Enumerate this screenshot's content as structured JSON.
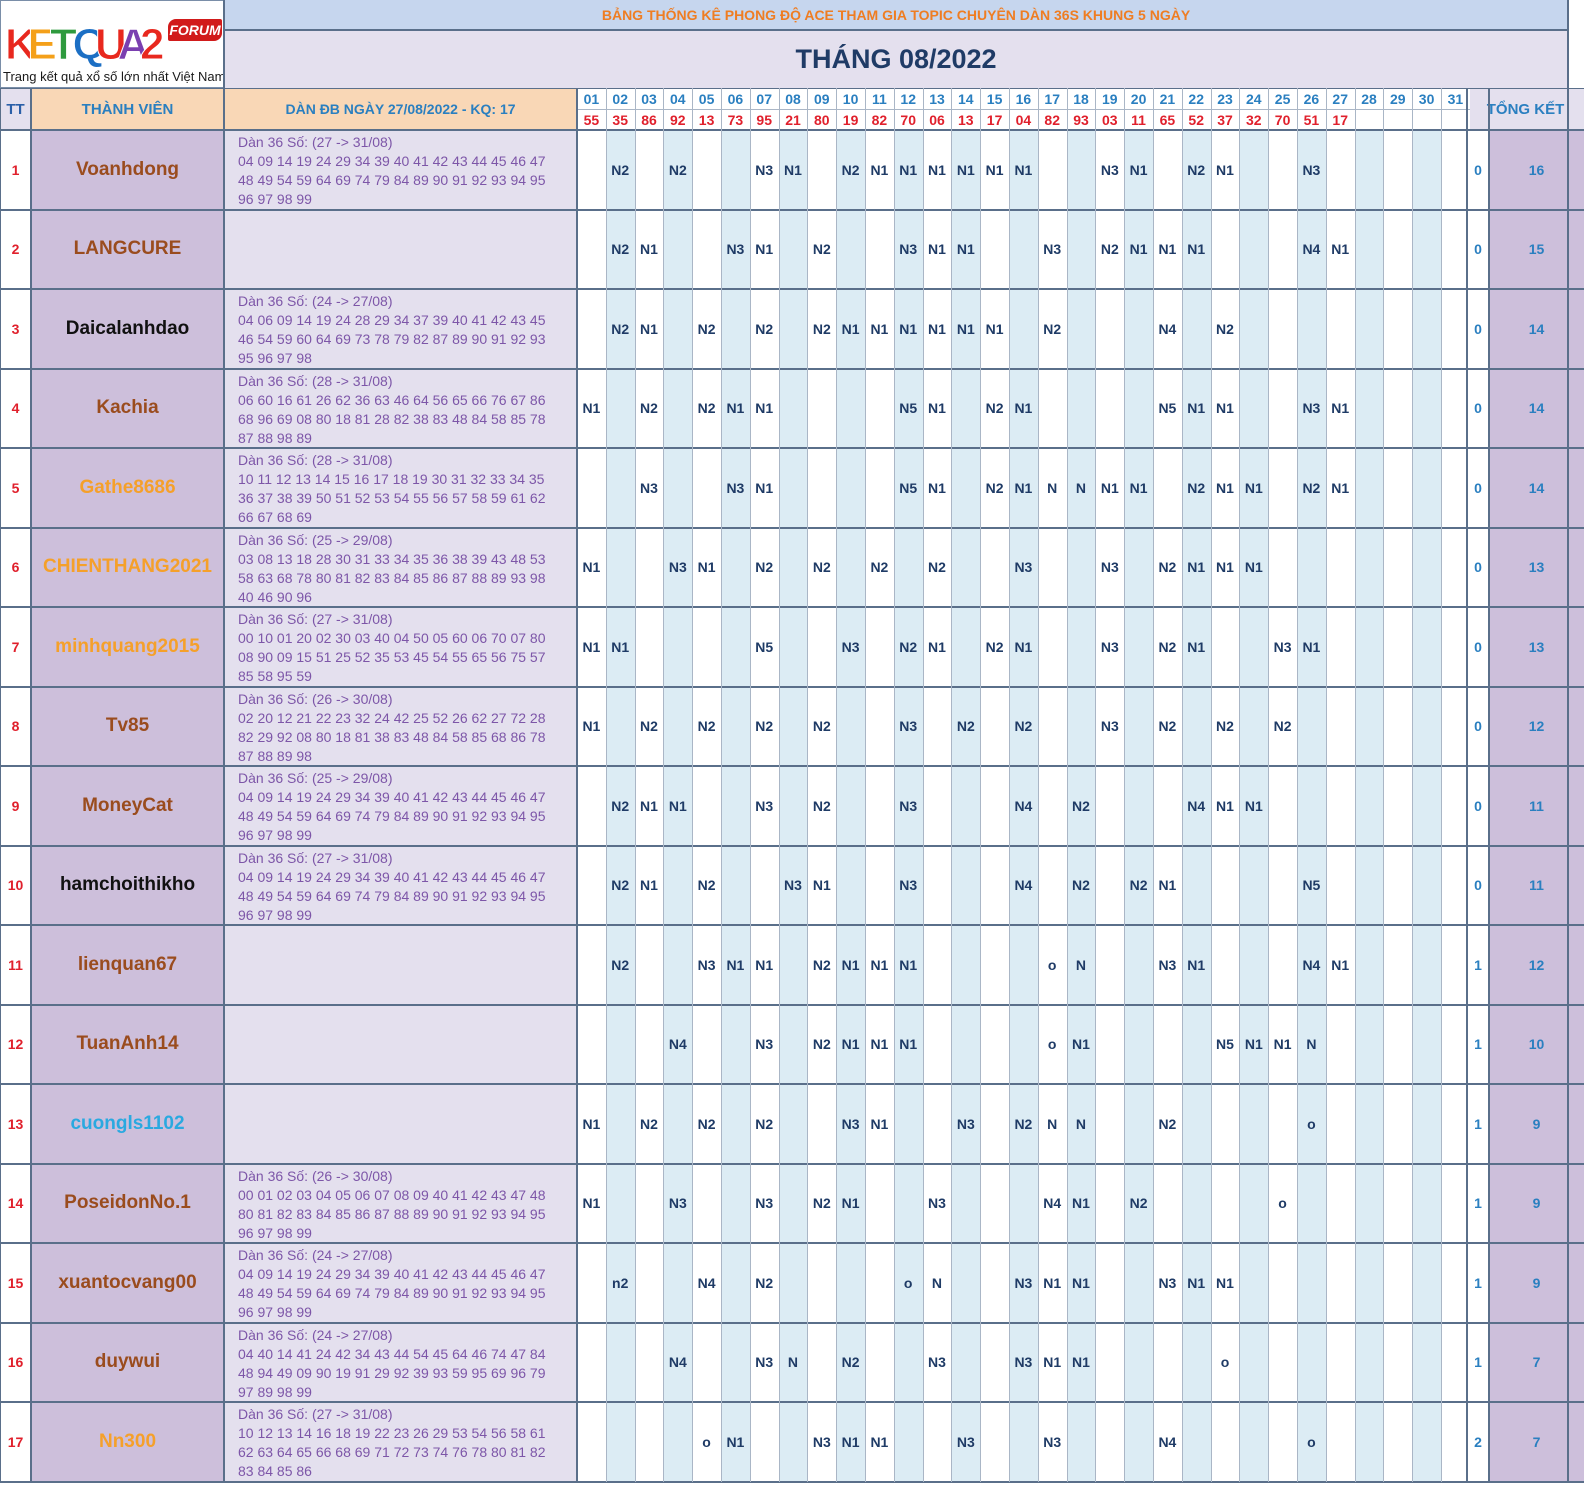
{
  "header": {
    "title": "BẢNG THỐNG KÊ PHONG ĐỘ ACE THAM GIA TOPIC CHUYÊN DÀN 36S KHUNG 5 NGÀY",
    "month": "THÁNG 08/2022",
    "col_tt": "TT",
    "col_member": "THÀNH VIÊN",
    "col_dan": "DÀN ĐB NGÀY 27/08/2022 - KQ: 17",
    "col_total": "TỔNG KẾT"
  },
  "logo": {
    "letters": [
      {
        "ch": "K",
        "color": "#e8281e"
      },
      {
        "ch": "E",
        "color": "#f4a019"
      },
      {
        "ch": "T",
        "color": "#2e9a3e"
      },
      {
        "ch": "Q",
        "color": "#1c6fc4"
      },
      {
        "ch": "U",
        "color": "#e8281e"
      },
      {
        "ch": "A",
        "color": "#7a3fb0"
      },
      {
        "ch": "2",
        "color": "#e8281e"
      }
    ],
    "badge": "FORUM",
    "tagline": "Trang kết quả xổ số lớn nhất Việt Nam"
  },
  "days": [
    "01",
    "02",
    "03",
    "04",
    "05",
    "06",
    "07",
    "08",
    "09",
    "10",
    "11",
    "12",
    "13",
    "14",
    "15",
    "16",
    "17",
    "18",
    "19",
    "20",
    "21",
    "22",
    "23",
    "24",
    "25",
    "26",
    "27",
    "28",
    "29",
    "30",
    "31"
  ],
  "results": [
    "55",
    "35",
    "86",
    "92",
    "13",
    "73",
    "95",
    "21",
    "80",
    "19",
    "82",
    "70",
    "06",
    "13",
    "17",
    "04",
    "82",
    "93",
    "03",
    "11",
    "65",
    "52",
    "37",
    "32",
    "70",
    "51",
    "17",
    "",
    "",
    "",
    ""
  ],
  "colors": {
    "name_brown": "#9a4c1e",
    "name_black": "#111111",
    "name_orange": "#f5a02a",
    "name_blue": "#2aa9e0"
  },
  "members": [
    {
      "tt": "1",
      "name": "Voanhdong",
      "color": "#9a4c1e",
      "dan": "Dàn 36 Số: (27 -> 31/08)\n04 09 14 19 24 29 34 39 40 41 42 43 44 45 46 47\n48 49 54 59 64 69 74 79 84 89 90 91 92 93 94 95\n96 97 98 99",
      "cells": {
        "02": "N2",
        "04": "N2",
        "07": "N3",
        "08": "N1",
        "10": "N2",
        "11": "N1",
        "12": "N1",
        "13": "N1",
        "14": "N1",
        "15": "N1",
        "16": "N1",
        "19": "N3",
        "20": "N1",
        "22": "N2",
        "23": "N1",
        "26": "N3"
      },
      "miss": "0",
      "total": "16"
    },
    {
      "tt": "2",
      "name": "LANGCURE",
      "color": "#9a4c1e",
      "dan": "",
      "cells": {
        "02": "N2",
        "03": "N1",
        "06": "N3",
        "07": "N1",
        "09": "N2",
        "12": "N3",
        "13": "N1",
        "14": "N1",
        "17": "N3",
        "19": "N2",
        "20": "N1",
        "21": "N1",
        "22": "N1",
        "26": "N4",
        "27": "N1"
      },
      "miss": "0",
      "total": "15"
    },
    {
      "tt": "3",
      "name": "Daicalanhdao",
      "color": "#111111",
      "dan": "Dàn 36 Số: (24 -> 27/08)\n04 06 09 14 19 24 28 29 34 37 39 40 41 42 43 45\n46 54 59 60 64 69 73 78 79 82 87 89 90 91 92 93\n95 96 97 98",
      "cells": {
        "02": "N2",
        "03": "N1",
        "05": "N2",
        "07": "N2",
        "09": "N2",
        "10": "N1",
        "11": "N1",
        "12": "N1",
        "13": "N1",
        "14": "N1",
        "15": "N1",
        "17": "N2",
        "21": "N4",
        "23": "N2"
      },
      "miss": "0",
      "total": "14"
    },
    {
      "tt": "4",
      "name": "Kachia",
      "color": "#9a4c1e",
      "dan": "Dàn 36 Số: (28 -> 31/08)\n06 60 16 61 26 62 36 63 46 64 56 65 66 76 67 86\n68 96 69 08 80 18 81 28 82 38 83 48 84 58 85 78\n87 88 98 89",
      "cells": {
        "01": "N1",
        "03": "N2",
        "05": "N2",
        "06": "N1",
        "07": "N1",
        "12": "N5",
        "13": "N1",
        "15": "N2",
        "16": "N1",
        "21": "N5",
        "22": "N1",
        "23": "N1",
        "26": "N3",
        "27": "N1"
      },
      "miss": "0",
      "total": "14"
    },
    {
      "tt": "5",
      "name": "Gathe8686",
      "color": "#f5a02a",
      "dan": "Dàn 36 Số: (28 -> 31/08)\n10 11 12 13 14 15 16 17 18 19 30 31 32 33 34 35\n36 37 38 39 50 51 52 53 54 55 56 57 58 59 61 62\n66 67 68 69",
      "cells": {
        "03": "N3",
        "06": "N3",
        "07": "N1",
        "12": "N5",
        "13": "N1",
        "15": "N2",
        "16": "N1",
        "17": "N",
        "18": "N",
        "19": "N1",
        "20": "N1",
        "22": "N2",
        "23": "N1",
        "24": "N1",
        "26": "N2",
        "27": "N1"
      },
      "miss": "0",
      "total": "14"
    },
    {
      "tt": "6",
      "name": "CHIENTHANG2021",
      "color": "#f5a02a",
      "dan": "Dàn 36 Số: (25 -> 29/08)\n03 08 13 18 28 30 31 33 34 35 36 38 39 43 48 53\n58 63 68 78 80 81 82 83 84 85 86 87 88 89 93 98\n40 46 90 96",
      "cells": {
        "01": "N1",
        "04": "N3",
        "05": "N1",
        "07": "N2",
        "09": "N2",
        "11": "N2",
        "13": "N2",
        "16": "N3",
        "19": "N3",
        "21": "N2",
        "22": "N1",
        "23": "N1",
        "24": "N1"
      },
      "miss": "0",
      "total": "13"
    },
    {
      "tt": "7",
      "name": "minhquang2015",
      "color": "#f5a02a",
      "dan": "Dàn 36 Số: (27 -> 31/08)\n00 10 01 20 02 30 03 40 04 50 05 60 06 70 07 80\n08 90 09 15 51 25 52 35 53 45 54 55 65 56 75 57\n85 58 95 59",
      "cells": {
        "01": "N1",
        "02": "N1",
        "07": "N5",
        "10": "N3",
        "12": "N2",
        "13": "N1",
        "15": "N2",
        "16": "N1",
        "19": "N3",
        "21": "N2",
        "22": "N1",
        "25": "N3",
        "26": "N1"
      },
      "miss": "0",
      "total": "13"
    },
    {
      "tt": "8",
      "name": "Tv85",
      "color": "#9a4c1e",
      "dan": "Dàn 36 Số: (26 -> 30/08)\n02 20 12 21 22 23 32 24 42 25 52 26 62 27 72 28\n82 29 92 08 80 18 81 38 83 48 84 58 85 68 86 78\n87 88 89 98",
      "cells": {
        "01": "N1",
        "03": "N2",
        "05": "N2",
        "07": "N2",
        "09": "N2",
        "12": "N3",
        "14": "N2",
        "16": "N2",
        "19": "N3",
        "21": "N2",
        "23": "N2",
        "25": "N2"
      },
      "miss": "0",
      "total": "12"
    },
    {
      "tt": "9",
      "name": "MoneyCat",
      "color": "#9a4c1e",
      "dan": "Dàn 36 Số: (25 -> 29/08)\n04 09 14 19 24 29 34 39 40 41 42 43 44 45 46 47\n48 49 54 59 64 69 74 79 84 89 90 91 92 93 94 95\n96 97 98 99",
      "cells": {
        "02": "N2",
        "03": "N1",
        "04": "N1",
        "07": "N3",
        "09": "N2",
        "12": "N3",
        "16": "N4",
        "18": "N2",
        "22": "N4",
        "23": "N1",
        "24": "N1"
      },
      "miss": "0",
      "total": "11"
    },
    {
      "tt": "10",
      "name": "hamchoithikho",
      "color": "#111111",
      "dan": "Dàn 36 Số: (27 -> 31/08)\n04 09 14 19 24 29 34 39 40 41 42 43 44 45 46 47\n48 49 54 59 64 69 74 79 84 89 90 91 92 93 94 95\n96 97 98 99",
      "cells": {
        "02": "N2",
        "03": "N1",
        "05": "N2",
        "08": "N3",
        "09": "N1",
        "12": "N3",
        "16": "N4",
        "18": "N2",
        "20": "N2",
        "21": "N1",
        "26": "N5"
      },
      "miss": "0",
      "total": "11"
    },
    {
      "tt": "11",
      "name": "lienquan67",
      "color": "#9a4c1e",
      "dan": "",
      "cells": {
        "02": "N2",
        "05": "N3",
        "06": "N1",
        "07": "N1",
        "09": "N2",
        "10": "N1",
        "11": "N1",
        "12": "N1",
        "17": "o",
        "18": "N",
        "21": "N3",
        "22": "N1",
        "26": "N4",
        "27": "N1"
      },
      "miss": "1",
      "total": "12"
    },
    {
      "tt": "12",
      "name": "TuanAnh14",
      "color": "#9a4c1e",
      "dan": "",
      "cells": {
        "04": "N4",
        "07": "N3",
        "09": "N2",
        "10": "N1",
        "11": "N1",
        "12": "N1",
        "17": "o",
        "18": "N1",
        "23": "N5",
        "24": "N1",
        "25": "N1",
        "26": "N"
      },
      "miss": "1",
      "total": "10"
    },
    {
      "tt": "13",
      "name": "cuongls1102",
      "color": "#2aa9e0",
      "dan": "",
      "cells": {
        "01": "N1",
        "03": "N2",
        "05": "N2",
        "07": "N2",
        "10": "N3",
        "11": "N1",
        "14": "N3",
        "16": "N2",
        "17": "N",
        "18": "N",
        "21": "N2",
        "26": "o"
      },
      "miss": "1",
      "total": "9"
    },
    {
      "tt": "14",
      "name": "PoseidonNo.1",
      "color": "#9a4c1e",
      "dan": "Dàn 36 Số: (26 -> 30/08)\n00 01 02 03 04 05 06 07 08 09 40 41 42 43 47 48\n80 81 82 83 84 85 86 87 88 89 90 91 92 93 94 95\n96 97 98 99",
      "cells": {
        "01": "N1",
        "04": "N3",
        "07": "N3",
        "09": "N2",
        "10": "N1",
        "13": "N3",
        "17": "N4",
        "18": "N1",
        "20": "N2",
        "25": "o"
      },
      "miss": "1",
      "total": "9"
    },
    {
      "tt": "15",
      "name": "xuantocvang00",
      "color": "#9a4c1e",
      "dan": "Dàn 36 Số: (24 -> 27/08)\n04 09 14 19 24 29 34 39 40 41 42 43 44 45 46 47\n48 49 54 59 64 69 74 79 84 89 90 91 92 93 94 95\n96 97 98 99",
      "cells": {
        "02": "n2",
        "05": "N4",
        "07": "N2",
        "12": "o",
        "13": "N",
        "16": "N3",
        "17": "N1",
        "18": "N1",
        "21": "N3",
        "22": "N1",
        "23": "N1"
      },
      "miss": "1",
      "total": "9"
    },
    {
      "tt": "16",
      "name": "duywui",
      "color": "#9a4c1e",
      "dan": "Dàn 36 Số: (24 -> 27/08)\n04 40 14 41 24 42 34 43 44 54 45 64 46 74 47 84\n48 94 49 09 90 19 91 29 92 39 93 59 95 69 96 79\n97 89 98 99",
      "cells": {
        "04": "N4",
        "07": "N3",
        "08": "N",
        "10": "N2",
        "13": "N3",
        "16": "N3",
        "17": "N1",
        "18": "N1",
        "23": "o"
      },
      "miss": "1",
      "total": "7"
    },
    {
      "tt": "17",
      "name": "Nn300",
      "color": "#f5a02a",
      "dan": "Dàn 36 Số: (27 -> 31/08)\n10 12 13 14 16 18 19 22 23 26 29 53 54 56 58 61\n62 63 64 65 66 68 69 71 72 73 74 76 78 80 81 82\n83 84 85 86",
      "cells": {
        "05": "o",
        "06": "N1",
        "09": "N3",
        "10": "N1",
        "11": "N1",
        "14": "N3",
        "17": "N3",
        "21": "N4",
        "26": "o"
      },
      "miss": "2",
      "total": "7"
    }
  ]
}
